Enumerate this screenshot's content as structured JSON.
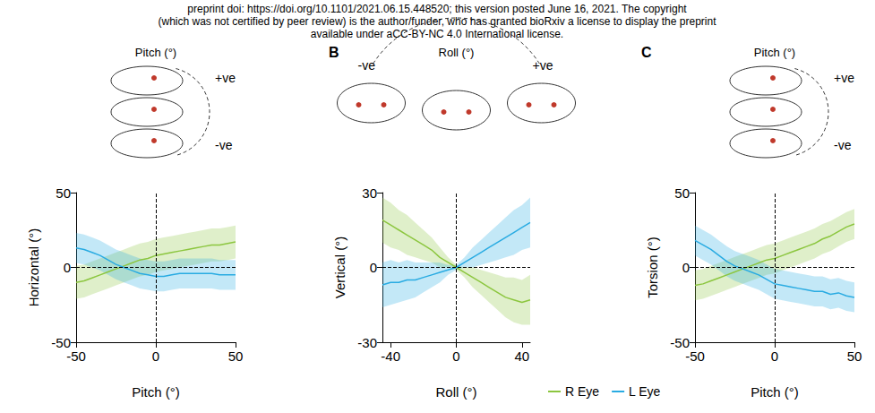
{
  "header": {
    "lines": [
      "preprint doi: https://doi.org/10.1101/2021.06.15.448520; this version posted June 16, 2021. The copyright",
      "(which was not certified by peer review) is the author/funder, who has granted bioRxiv a license to display the preprint",
      "available under aCC-BY-NC 4.0 International license."
    ]
  },
  "chart_data": [
    {
      "type": "line",
      "panel_title": "Pitch (°)",
      "annotations": [
        "+ve",
        "-ve"
      ],
      "xlabel": "Pitch (°)",
      "ylabel": "Horizontal (°)",
      "xlim": [
        -50,
        50
      ],
      "xticks": [
        -50,
        0,
        50
      ],
      "ylim": [
        -50,
        50
      ],
      "yticks": [
        -50,
        0,
        50
      ],
      "grid": false,
      "ref_lines": {
        "x": 0,
        "y": 0
      },
      "x": [
        -50,
        -45,
        -40,
        -35,
        -30,
        -25,
        -20,
        -15,
        -10,
        -5,
        0,
        5,
        10,
        15,
        20,
        25,
        30,
        35,
        40,
        45,
        50
      ],
      "series": [
        {
          "name": "R Eye",
          "color": "#8cc63f",
          "values": [
            -10,
            -9,
            -7,
            -5,
            -3,
            -1,
            1,
            3,
            5,
            6,
            8,
            9,
            10,
            11,
            12,
            13,
            14,
            15,
            15,
            16,
            17
          ],
          "lower": [
            -21,
            -20,
            -18,
            -16,
            -14,
            -12,
            -10,
            -8,
            -6,
            -5,
            -3,
            -2,
            -1,
            0,
            1,
            2,
            3,
            4,
            4,
            5,
            6
          ],
          "upper": [
            1,
            2,
            4,
            6,
            8,
            10,
            12,
            14,
            16,
            17,
            19,
            20,
            21,
            22,
            23,
            24,
            25,
            26,
            26,
            27,
            28
          ]
        },
        {
          "name": "L Eye",
          "color": "#29abe2",
          "values": [
            13,
            12,
            10,
            8,
            5,
            2,
            0,
            -2,
            -4,
            -5,
            -6,
            -6,
            -5,
            -4,
            -4,
            -4,
            -4,
            -4,
            -5,
            -5,
            -5
          ],
          "lower": [
            3,
            2,
            0,
            -2,
            -5,
            -8,
            -10,
            -12,
            -14,
            -15,
            -16,
            -16,
            -15,
            -14,
            -14,
            -14,
            -14,
            -14,
            -15,
            -15,
            -15
          ],
          "upper": [
            23,
            22,
            20,
            18,
            15,
            12,
            10,
            8,
            6,
            5,
            4,
            4,
            5,
            6,
            6,
            6,
            6,
            6,
            5,
            5,
            5
          ]
        }
      ]
    },
    {
      "type": "line",
      "panel_letter": "B",
      "panel_title": "Roll (°)",
      "annotations": [
        "-ve",
        "+ve"
      ],
      "xlabel": "Roll (°)",
      "ylabel": "Vertical (°)",
      "xlim": [
        -45,
        45
      ],
      "xticks": [
        -40,
        0,
        40
      ],
      "ylim": [
        -30,
        30
      ],
      "yticks": [
        -30,
        0,
        30
      ],
      "grid": false,
      "legend": "bottom",
      "ref_lines": {
        "x": 0,
        "y": 0
      },
      "x": [
        -45,
        -40,
        -35,
        -30,
        -25,
        -20,
        -15,
        -10,
        -5,
        0,
        5,
        10,
        15,
        20,
        25,
        30,
        35,
        40,
        45
      ],
      "series": [
        {
          "name": "R Eye",
          "color": "#8cc63f",
          "values": [
            19,
            17,
            15,
            13,
            11,
            9,
            7,
            4,
            2,
            0,
            -2,
            -4,
            -6,
            -8,
            -10,
            -12,
            -13,
            -14,
            -13
          ],
          "lower": [
            10,
            8,
            7,
            5,
            4,
            3,
            2,
            0,
            0,
            -1,
            -4,
            -8,
            -11,
            -14,
            -17,
            -20,
            -22,
            -23,
            -23
          ],
          "upper": [
            28,
            26,
            23,
            21,
            18,
            15,
            12,
            8,
            4,
            1,
            0,
            0,
            -1,
            -2,
            -3,
            -4,
            -4,
            -5,
            -3
          ]
        },
        {
          "name": "L Eye",
          "color": "#29abe2",
          "values": [
            -7,
            -6,
            -6,
            -5,
            -5,
            -4,
            -3,
            -2,
            -1,
            0,
            2,
            4,
            6,
            8,
            10,
            12,
            14,
            16,
            18
          ],
          "lower": [
            -16,
            -15,
            -14,
            -13,
            -12,
            -10,
            -8,
            -6,
            -3,
            -1,
            0,
            0,
            1,
            2,
            3,
            4,
            5,
            7,
            8
          ],
          "upper": [
            2,
            3,
            2,
            3,
            2,
            2,
            2,
            2,
            1,
            1,
            4,
            8,
            11,
            14,
            17,
            20,
            23,
            25,
            28
          ]
        }
      ]
    },
    {
      "type": "line",
      "panel_letter": "C",
      "panel_title": "Pitch (°)",
      "annotations": [
        "+ve",
        "-ve"
      ],
      "xlabel": "Pitch (°)",
      "ylabel": "Torsion (°)",
      "xlim": [
        -50,
        50
      ],
      "xticks": [
        -50,
        0,
        50
      ],
      "ylim": [
        -50,
        50
      ],
      "yticks": [
        -50,
        0,
        50
      ],
      "grid": false,
      "ref_lines": {
        "x": 0,
        "y": 0
      },
      "x": [
        -50,
        -45,
        -40,
        -35,
        -30,
        -25,
        -20,
        -15,
        -10,
        -5,
        0,
        5,
        10,
        15,
        20,
        25,
        30,
        35,
        40,
        45,
        50
      ],
      "series": [
        {
          "name": "R Eye",
          "color": "#8cc63f",
          "values": [
            -12,
            -11,
            -9,
            -7,
            -5,
            -3,
            -1,
            1,
            3,
            5,
            6,
            8,
            10,
            12,
            14,
            16,
            19,
            21,
            24,
            27,
            29
          ],
          "lower": [
            -22,
            -21,
            -19,
            -17,
            -15,
            -13,
            -11,
            -9,
            -7,
            -5,
            -4,
            -2,
            0,
            2,
            4,
            6,
            9,
            11,
            14,
            17,
            19
          ],
          "upper": [
            -2,
            -1,
            1,
            3,
            5,
            7,
            9,
            11,
            13,
            15,
            16,
            18,
            20,
            22,
            24,
            26,
            29,
            31,
            34,
            37,
            39
          ]
        },
        {
          "name": "L Eye",
          "color": "#29abe2",
          "values": [
            18,
            15,
            12,
            8,
            4,
            1,
            -1,
            -3,
            -5,
            -8,
            -11,
            -12,
            -13,
            -14,
            -15,
            -16,
            -16,
            -18,
            -17,
            -19,
            -20
          ],
          "lower": [
            8,
            5,
            2,
            -2,
            -6,
            -9,
            -11,
            -13,
            -15,
            -18,
            -21,
            -22,
            -23,
            -24,
            -25,
            -26,
            -26,
            -28,
            -27,
            -29,
            -30
          ],
          "upper": [
            28,
            25,
            22,
            18,
            14,
            11,
            9,
            7,
            5,
            2,
            -1,
            -2,
            -3,
            -4,
            -5,
            -6,
            -6,
            -8,
            -7,
            -9,
            -10
          ]
        }
      ]
    }
  ]
}
